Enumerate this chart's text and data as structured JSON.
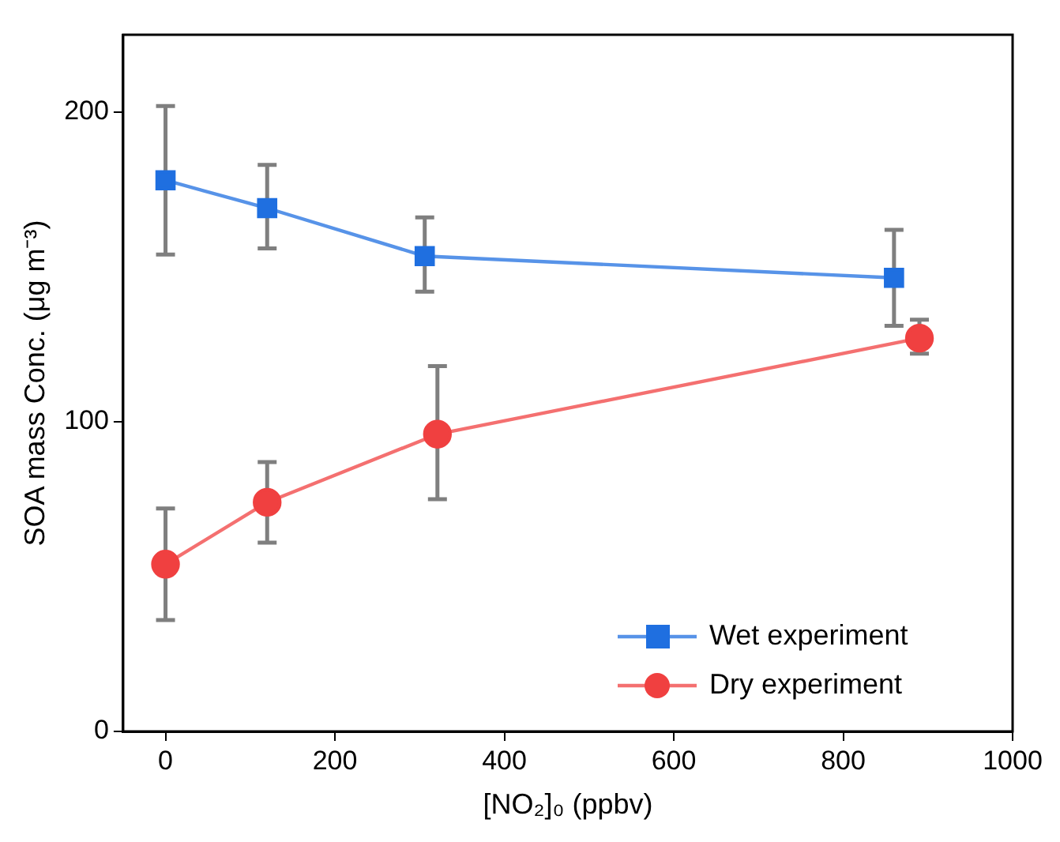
{
  "chart_data": {
    "type": "line",
    "xlabel": "[NO₂]₀ (ppbv)",
    "ylabel": "SOA mass Conc. (μg m⁻³)",
    "xlim": [
      -50,
      1000
    ],
    "xticks": [
      0,
      200,
      400,
      600,
      800,
      1000
    ],
    "ylim": [
      0,
      225
    ],
    "yticks": [
      0,
      100,
      200
    ],
    "grid": false,
    "legend": "bottom right",
    "series": [
      {
        "name": "Wet experiment",
        "color": "#1f6fe0",
        "marker": "square",
        "x": [
          0,
          120,
          306,
          860
        ],
        "values": [
          178,
          169,
          153.5,
          146.5
        ],
        "errors": [
          [
            154,
            202
          ],
          [
            156,
            183
          ],
          [
            142,
            166
          ],
          [
            131,
            162
          ]
        ]
      },
      {
        "name": "Dry experiment",
        "color": "#f04040",
        "marker": "circle",
        "x": [
          0,
          120,
          321,
          890
        ],
        "values": [
          54,
          74,
          96,
          127
        ],
        "errors": [
          [
            36,
            72
          ],
          [
            61,
            87
          ],
          [
            75,
            118
          ],
          [
            122,
            133
          ]
        ]
      }
    ]
  }
}
